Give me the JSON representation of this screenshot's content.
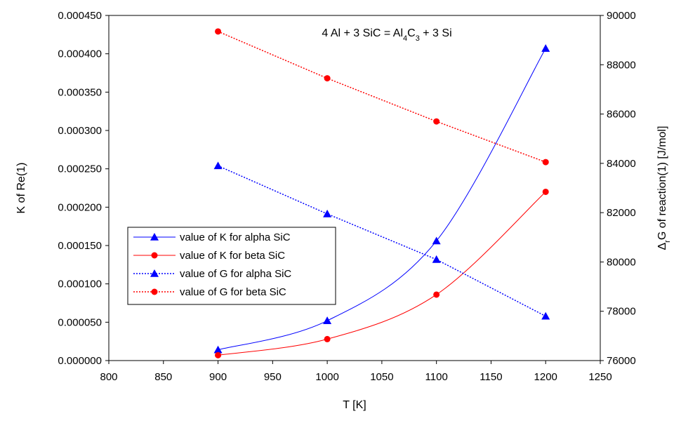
{
  "chart_data": {
    "type": "line",
    "title": "",
    "equation": {
      "parts": [
        {
          "t": "4 Al + 3 SiC = Al",
          "sub": false
        },
        {
          "t": "4",
          "sub": true
        },
        {
          "t": "C",
          "sub": false
        },
        {
          "t": "3",
          "sub": true
        },
        {
          "t": " + 3 Si",
          "sub": false
        }
      ]
    },
    "xlabel": "T [K]",
    "ylabel_left": "K of Re(1)",
    "ylabel_right": {
      "prefix": "Δ",
      "sub": "r",
      "rest": "G of reaction(1) [J/mol]"
    },
    "xlim": [
      800,
      1250
    ],
    "ylim_left": [
      0,
      0.00045
    ],
    "ylim_right": [
      76000,
      90000
    ],
    "x_ticks": [
      "800",
      "850",
      "900",
      "950",
      "1000",
      "1050",
      "1100",
      "1150",
      "1200",
      "1250"
    ],
    "x_tick_values": [
      800,
      850,
      900,
      950,
      1000,
      1050,
      1100,
      1150,
      1200,
      1250
    ],
    "y_left_ticks": [
      "0.000000",
      "0.000050",
      "0.000100",
      "0.000150",
      "0.000200",
      "0.000250",
      "0.000300",
      "0.000350",
      "0.000400",
      "0.000450"
    ],
    "y_left_tick_values": [
      0,
      5e-05,
      0.0001,
      0.00015,
      0.0002,
      0.00025,
      0.0003,
      0.00035,
      0.0004,
      0.00045
    ],
    "y_right_ticks": [
      "76000",
      "78000",
      "80000",
      "82000",
      "84000",
      "86000",
      "88000",
      "90000"
    ],
    "y_right_tick_values": [
      76000,
      78000,
      80000,
      82000,
      84000,
      86000,
      88000,
      90000
    ],
    "grid": false,
    "legend_position": "left-middle",
    "series": [
      {
        "name": "value of K for alpha SiC",
        "axis": "left",
        "color": "#0000ff",
        "dash": "solid",
        "marker": "triangle",
        "smooth": true,
        "x": [
          900,
          1000,
          1100,
          1200
        ],
        "y": [
          1.4e-05,
          5.2e-05,
          0.000156,
          0.000407
        ]
      },
      {
        "name": "value of K for beta SiC",
        "axis": "left",
        "color": "#ff0000",
        "dash": "solid",
        "marker": "circle",
        "smooth": true,
        "x": [
          900,
          1000,
          1100,
          1200
        ],
        "y": [
          7e-06,
          2.8e-05,
          8.6e-05,
          0.00022
        ]
      },
      {
        "name": "value of G for alpha SiC",
        "axis": "right",
        "color": "#0000ff",
        "dash": "dotted",
        "marker": "triangle",
        "smooth": false,
        "x": [
          900,
          1000,
          1100,
          1200
        ],
        "y": [
          83900,
          81950,
          80100,
          77800
        ]
      },
      {
        "name": "value of G for beta SiC",
        "axis": "right",
        "color": "#ff0000",
        "dash": "dotted",
        "marker": "circle",
        "smooth": false,
        "x": [
          900,
          1000,
          1100,
          1200
        ],
        "y": [
          89350,
          87450,
          85700,
          84050
        ]
      }
    ]
  }
}
